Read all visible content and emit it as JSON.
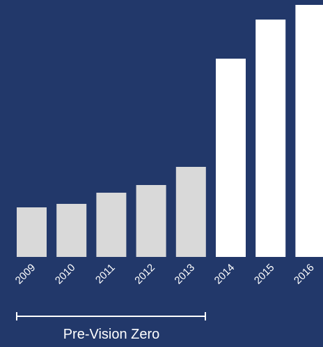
{
  "chart_data": {
    "type": "bar",
    "categories": [
      "2009",
      "2010",
      "2011",
      "2012",
      "2013",
      "2014",
      "2015",
      "2016"
    ],
    "values": [
      71,
      76,
      92,
      103,
      129,
      284,
      340,
      361
    ],
    "colors": [
      "#d9d9d9",
      "#d9d9d9",
      "#d9d9d9",
      "#d9d9d9",
      "#d9d9d9",
      "#ffffff",
      "#ffffff",
      "#ffffff"
    ],
    "ylim": [
      0,
      368
    ],
    "annotation": "Pre-Vision Zero"
  }
}
